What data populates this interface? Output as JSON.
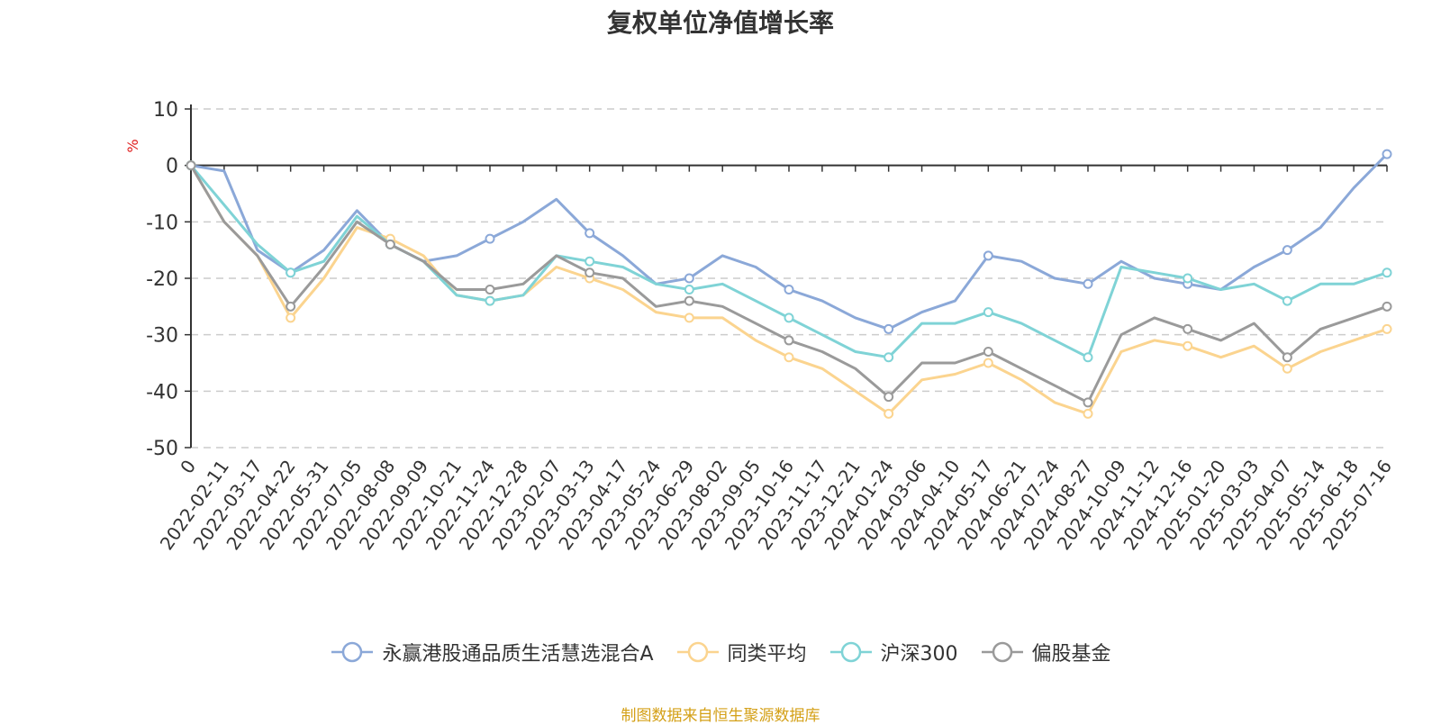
{
  "chart_data": {
    "type": "line",
    "title": "复权单位净值增长率",
    "ylabel": "%",
    "ylim": [
      -50,
      10
    ],
    "yticks": [
      10,
      0,
      -10,
      -20,
      -30,
      -40,
      -50
    ],
    "grid": true,
    "legend_position": "bottom",
    "x": [
      "0",
      "2022-02-11",
      "2022-03-17",
      "2022-04-22",
      "2022-05-31",
      "2022-07-05",
      "2022-08-08",
      "2022-09-09",
      "2022-10-21",
      "2022-11-24",
      "2022-12-28",
      "2023-02-07",
      "2023-03-13",
      "2023-04-17",
      "2023-05-24",
      "2023-06-29",
      "2023-08-02",
      "2023-09-05",
      "2023-10-16",
      "2023-11-17",
      "2023-12-21",
      "2024-01-24",
      "2024-03-06",
      "2024-04-10",
      "2024-05-17",
      "2024-06-21",
      "2024-07-24",
      "2024-08-27",
      "2024-10-09",
      "2024-11-12",
      "2024-12-16",
      "2025-01-20",
      "2025-03-03",
      "2025-04-07",
      "2025-05-14",
      "2025-06-18",
      "2025-07-16"
    ],
    "series": [
      {
        "name": "永赢港股通品质生活慧选混合A",
        "color": "#8ba8d8",
        "values": [
          0,
          -1,
          -15,
          -19,
          -15,
          -8,
          -14,
          -17,
          -16,
          -13,
          -10,
          -6,
          -12,
          -16,
          -21,
          -20,
          -16,
          -18,
          -22,
          -24,
          -27,
          -29,
          -26,
          -24,
          -16,
          -17,
          -20,
          -21,
          -17,
          -20,
          -21,
          -22,
          -18,
          -15,
          -11,
          -4,
          2
        ]
      },
      {
        "name": "同类平均",
        "color": "#fbd48f",
        "values": [
          0,
          -10,
          -16,
          -27,
          -20,
          -11,
          -13,
          -16,
          -23,
          -24,
          -23,
          -18,
          -20,
          -22,
          -26,
          -27,
          -27,
          -31,
          -34,
          -36,
          -40,
          -44,
          -38,
          -37,
          -35,
          -38,
          -42,
          -44,
          -33,
          -31,
          -32,
          -34,
          -32,
          -36,
          -33,
          -31,
          -29
        ]
      },
      {
        "name": "沪深300",
        "color": "#7fd3d6",
        "values": [
          0,
          -7,
          -14,
          -19,
          -17,
          -9,
          -14,
          -17,
          -23,
          -24,
          -23,
          -16,
          -17,
          -18,
          -21,
          -22,
          -21,
          -24,
          -27,
          -30,
          -33,
          -34,
          -28,
          -28,
          -26,
          -28,
          -31,
          -34,
          -18,
          -19,
          -20,
          -22,
          -21,
          -24,
          -21,
          -21,
          -19
        ]
      },
      {
        "name": "偏股基金",
        "color": "#9a9a9a",
        "values": [
          0,
          -10,
          -16,
          -25,
          -18,
          -10,
          -14,
          -17,
          -22,
          -22,
          -21,
          -16,
          -19,
          -20,
          -25,
          -24,
          -25,
          -28,
          -31,
          -33,
          -36,
          -41,
          -35,
          -35,
          -33,
          -36,
          -39,
          -42,
          -30,
          -27,
          -29,
          -31,
          -28,
          -34,
          -29,
          -27,
          -25
        ]
      }
    ]
  },
  "source": "制图数据来自恒生聚源数据库"
}
